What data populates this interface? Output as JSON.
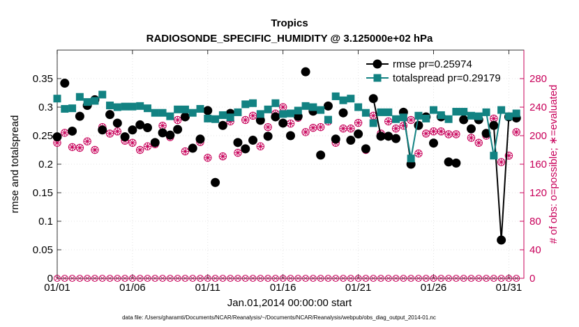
{
  "chart_data": {
    "type": "line",
    "title": "Tropics",
    "subtitle": "RADIOSONDE_SPECIFIC_HUMIDITY @ 3.125000e+02 hPa",
    "xlabel": "Jan.01,2014 00:00:00 start",
    "ylabel": "rmse and totalspread",
    "y2label": "# of obs: o=possible; ∗=evaluated",
    "footer": "data file: /Users/gharamti/Documents/NCAR/Reanalysis/~/Documents/NCAR/Reanalysis/webpub/obs_diag_output_2014-01.nc",
    "xlim": [
      1,
      32
    ],
    "ylim": [
      0,
      0.4
    ],
    "y2lim": [
      0,
      320
    ],
    "x_ticks": [
      1,
      6,
      11,
      16,
      21,
      26,
      31
    ],
    "x_tick_labels": [
      "01/01",
      "01/06",
      "01/11",
      "01/16",
      "01/21",
      "01/26",
      "01/31"
    ],
    "y_ticks": [
      0,
      0.05,
      0.1,
      0.15,
      0.2,
      0.25,
      0.3,
      0.35
    ],
    "y_tick_labels": [
      "0",
      "0.05",
      "0.1",
      "0.15",
      "0.2",
      "0.25",
      "0.3",
      "0.35"
    ],
    "y2_ticks": [
      0,
      40,
      80,
      120,
      160,
      200,
      240,
      280
    ],
    "y2_tick_labels": [
      "0",
      "40",
      "80",
      "120",
      "160",
      "200",
      "240",
      "280"
    ],
    "grid": true,
    "legend_position": "top-right",
    "x": [
      1,
      1.5,
      2,
      2.5,
      3,
      3.5,
      4,
      4.5,
      5,
      5.5,
      6,
      6.5,
      7,
      7.5,
      8,
      8.5,
      9,
      9.5,
      10,
      10.5,
      11,
      11.5,
      12,
      12.5,
      13,
      13.5,
      14,
      14.5,
      15,
      15.5,
      16,
      16.5,
      17,
      17.5,
      18,
      18.5,
      19,
      19.5,
      20,
      20.5,
      21,
      21.5,
      22,
      22.5,
      23,
      23.5,
      24,
      24.5,
      25,
      25.5,
      26,
      26.5,
      27,
      27.5,
      28,
      28.5,
      29,
      29.5,
      30,
      30.5,
      31,
      31.5
    ],
    "series": [
      {
        "name": "rmse pr=0.25974",
        "color": "#000000",
        "values": [
          0.248,
          0.342,
          0.258,
          0.284,
          0.303,
          0.313,
          0.26,
          0.287,
          0.272,
          0.248,
          0.26,
          0.269,
          0.264,
          0.238,
          0.255,
          0.251,
          0.261,
          0.283,
          0.228,
          0.244,
          0.294,
          0.168,
          0.268,
          0.289,
          0.238,
          0.227,
          0.242,
          0.277,
          0.249,
          0.283,
          0.272,
          0.25,
          0.284,
          0.362,
          0.293,
          0.216,
          0.302,
          0.244,
          0.29,
          0.242,
          0.253,
          0.227,
          0.315,
          0.249,
          0.249,
          0.245,
          0.291,
          0.2,
          0.268,
          0.283,
          0.237,
          0.283,
          0.204,
          0.202,
          0.278,
          0.262,
          0.278,
          0.254,
          0.268,
          0.067,
          0.283,
          0.281
        ]
      },
      {
        "name": "totalspread pr=0.29179",
        "color": "#128282",
        "values": [
          0.315,
          0.297,
          0.298,
          0.318,
          0.309,
          0.311,
          0.322,
          0.303,
          0.3,
          0.301,
          0.301,
          0.302,
          0.298,
          0.29,
          0.29,
          0.284,
          0.296,
          0.296,
          0.29,
          0.297,
          0.28,
          0.279,
          0.286,
          0.282,
          0.291,
          0.305,
          0.307,
          0.288,
          0.296,
          0.307,
          0.288,
          0.289,
          0.294,
          0.302,
          0.3,
          0.295,
          0.278,
          0.319,
          0.312,
          0.315,
          0.3,
          0.29,
          0.272,
          0.291,
          0.291,
          0.279,
          0.282,
          0.21,
          0.285,
          0.28,
          0.295,
          0.286,
          0.279,
          0.292,
          0.292,
          0.285,
          0.284,
          0.291,
          0.215,
          0.295,
          0.284,
          0.289
        ]
      },
      {
        "name": "possible obs",
        "color": "#c8005a",
        "values": [
          0,
          0,
          0,
          0,
          0,
          0,
          0,
          0,
          0,
          0,
          0,
          0,
          0,
          0,
          0,
          0,
          0,
          0,
          0,
          0,
          0,
          0,
          0,
          0,
          0,
          0,
          0,
          0,
          0,
          0,
          0,
          0,
          0,
          0,
          0,
          0,
          0,
          0,
          0,
          0,
          0,
          0,
          0,
          0,
          0,
          0,
          0,
          0,
          0,
          0,
          0,
          0,
          0,
          0,
          0,
          0,
          0,
          0,
          0,
          0,
          0,
          0
        ]
      },
      {
        "name": "evaluated obs",
        "color": "#c8005a",
        "values": [
          190,
          204,
          184,
          183,
          192,
          180,
          212,
          203,
          206,
          193,
          190,
          180,
          185,
          188,
          214,
          198,
          222,
          178,
          183,
          191,
          169,
          134,
          171,
          220,
          176,
          222,
          228,
          185,
          212,
          231,
          240,
          217,
          225,
          205,
          211,
          212,
          220,
          190,
          210,
          210,
          218,
          180,
          228,
          203,
          220,
          210,
          214,
          222,
          175,
          203,
          206,
          206,
          202,
          202,
          233,
          197,
          190,
          200,
          224,
          163,
          172,
          205
        ]
      }
    ]
  }
}
